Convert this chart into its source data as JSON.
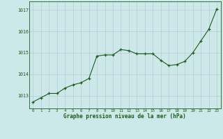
{
  "hours": [
    0,
    1,
    2,
    3,
    4,
    5,
    6,
    7,
    8,
    9,
    10,
    11,
    12,
    13,
    14,
    15,
    16,
    17,
    18,
    19,
    20,
    21,
    22,
    23
  ],
  "pressure": [
    1012.7,
    1012.9,
    1013.1,
    1013.1,
    1013.35,
    1013.5,
    1013.6,
    1013.8,
    1014.85,
    1014.9,
    1014.9,
    1015.15,
    1015.1,
    1014.95,
    1014.95,
    1014.95,
    1014.65,
    1014.4,
    1014.45,
    1014.6,
    1015.0,
    1015.55,
    1016.1,
    1017.05
  ],
  "line_color": "#1a5c1a",
  "marker_color": "#1a5c1a",
  "bg_color": "#cce8e8",
  "grid_color": "#b8c8d8",
  "xlabel": "Graphe pression niveau de la mer (hPa)",
  "xlabel_color": "#1a5c1a",
  "tick_color": "#1a5c1a",
  "ylim_min": 1012.4,
  "ylim_max": 1017.4,
  "yticks": [
    1013,
    1014,
    1015,
    1016,
    1017
  ],
  "figwidth": 3.2,
  "figheight": 2.0,
  "dpi": 100
}
